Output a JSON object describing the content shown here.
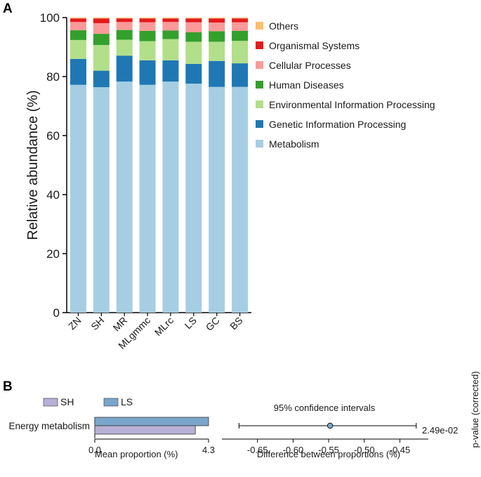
{
  "chart_data": [
    {
      "type": "bar",
      "stacked": true,
      "panel_label": "A",
      "ylabel": "Relative abundance (%)",
      "ylim": [
        0,
        100
      ],
      "yticks": [
        "0",
        "20",
        "40",
        "60",
        "80",
        "100"
      ],
      "categories": [
        "ZN",
        "SH",
        "MR",
        "MLgmmc",
        "MLrc",
        "LS",
        "GC",
        "BS"
      ],
      "series": [
        {
          "name": "Metabolism",
          "color": "#a6cee3",
          "values": [
            77.2,
            76.4,
            78.3,
            77.2,
            78.3,
            77.6,
            76.5,
            76.5
          ]
        },
        {
          "name": "Genetic Information Processing",
          "color": "#1f78b4",
          "values": [
            8.8,
            5.6,
            8.8,
            8.3,
            7.2,
            6.7,
            8.8,
            8.0
          ]
        },
        {
          "name": "Environmental Information Processing",
          "color": "#b2df8a",
          "values": [
            6.4,
            8.7,
            5.4,
            6.5,
            7.2,
            7.5,
            6.5,
            7.6
          ]
        },
        {
          "name": "Human Diseases",
          "color": "#33a02c",
          "values": [
            3.3,
            3.8,
            3.3,
            3.5,
            2.9,
            3.2,
            3.6,
            3.4
          ]
        },
        {
          "name": "Cellular Processes",
          "color": "#fb9a99",
          "values": [
            2.8,
            3.6,
            2.7,
            2.9,
            2.9,
            3.4,
            2.9,
            2.9
          ]
        },
        {
          "name": "Organismal Systems",
          "color": "#e31a1c",
          "values": [
            1.2,
            1.6,
            1.2,
            1.3,
            1.2,
            1.3,
            1.4,
            1.3
          ]
        },
        {
          "name": "Others",
          "color": "#fdbf6f",
          "values": [
            0.3,
            0.3,
            0.3,
            0.3,
            0.3,
            0.3,
            0.3,
            0.3
          ]
        }
      ],
      "legend": [
        "Others",
        "Organismal Systems",
        "Cellular Processes",
        "Human Diseases",
        "Environmental Information Processing",
        "Genetic Information Processing",
        "Metabolism"
      ]
    },
    {
      "type": "bar",
      "orientation": "horizontal",
      "panel_label": "B",
      "groups": [
        {
          "name": "SH",
          "color": "#b8b0d6"
        },
        {
          "name": "LS",
          "color": "#7aa6cc"
        }
      ],
      "feature": "Energy metabolism",
      "values": {
        "SH": 3.8,
        "LS": 4.3
      },
      "xlabel": "Mean proportion (%)",
      "xlim": [
        0.0,
        4.3
      ],
      "xticks": [
        "0.0",
        "4.3"
      ]
    },
    {
      "type": "scatter",
      "title": "95% confidence intervals",
      "xlabel": "Difference between proportions (%)",
      "xlim": [
        -0.7,
        -0.41
      ],
      "xticks": [
        -0.65,
        -0.6,
        -0.55,
        -0.5,
        -0.45
      ],
      "xtick_labels": [
        "-0.65",
        "-0.60",
        "-0.55",
        "-0.50",
        "-0.45"
      ],
      "point": {
        "estimate": -0.548,
        "ci_low": -0.676,
        "ci_high": -0.427,
        "color": "#7aa6cc"
      },
      "p_value": "2.49e-02",
      "p_value_label": "p-value (corrected)"
    }
  ]
}
